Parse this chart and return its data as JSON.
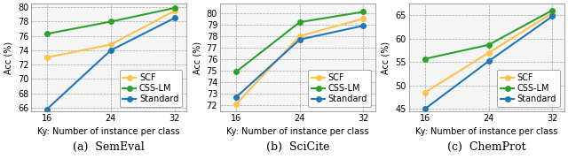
{
  "x": [
    16,
    24,
    32
  ],
  "panels": [
    {
      "title": "(a)  SemEval",
      "ylabel": "Acc (%)",
      "xlabel": "Ky: Number of instance per class",
      "ylim": [
        65.5,
        80.5
      ],
      "yticks": [
        66,
        68,
        70,
        72,
        74,
        76,
        78,
        80
      ],
      "SCF": [
        73.0,
        74.8,
        79.5
      ],
      "CSS-LM": [
        76.3,
        78.0,
        79.9
      ],
      "Standard": [
        65.8,
        74.0,
        78.5
      ]
    },
    {
      "title": "(b)  SciCite",
      "ylabel": "Acc (%)",
      "xlabel": "Ky: Number of instance per class",
      "ylim": [
        71.5,
        80.8
      ],
      "yticks": [
        72,
        73,
        74,
        75,
        76,
        77,
        78,
        79,
        80
      ],
      "SCF": [
        72.1,
        78.0,
        79.5
      ],
      "CSS-LM": [
        74.9,
        79.2,
        80.1
      ],
      "Standard": [
        72.7,
        77.7,
        78.9
      ]
    },
    {
      "title": "(c)  ChemProt",
      "ylabel": "Acc (%)",
      "xlabel": "Ky: Number of instance per class",
      "ylim": [
        44.5,
        67.5
      ],
      "yticks": [
        45,
        50,
        55,
        60,
        65
      ],
      "SCF": [
        48.5,
        57.0,
        65.5
      ],
      "CSS-LM": [
        55.7,
        58.7,
        66.1
      ],
      "Standard": [
        45.0,
        55.2,
        64.8
      ]
    }
  ],
  "colors": {
    "SCF": "#FFC04C",
    "CSS-LM": "#2CA02C",
    "Standard": "#1F77B4"
  },
  "marker": "o",
  "linewidth": 1.5,
  "markersize": 4,
  "legend_fontsize": 7,
  "tick_fontsize": 7,
  "label_fontsize": 7,
  "title_fontsize": 9
}
